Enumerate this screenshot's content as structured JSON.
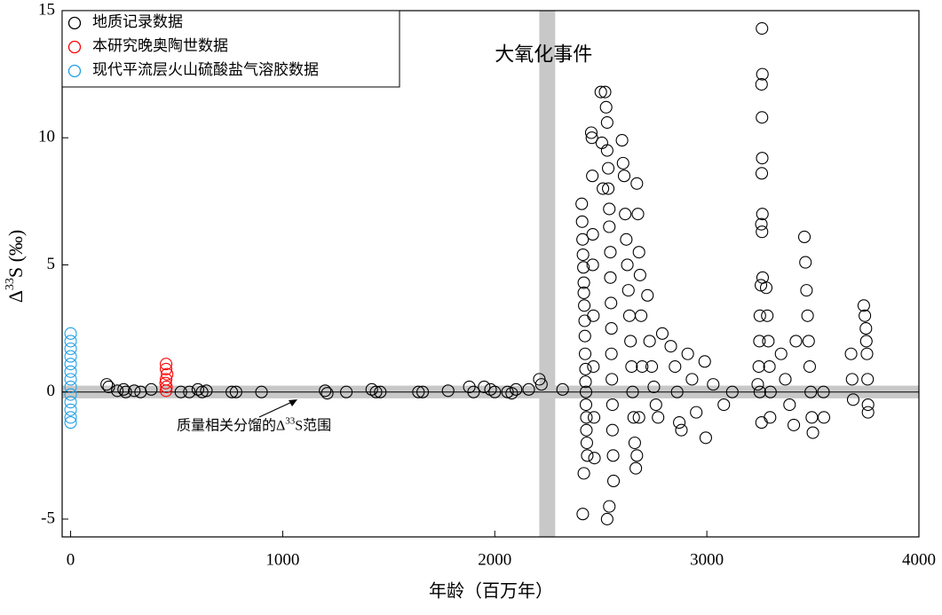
{
  "chart_data": {
    "type": "scatter",
    "xlabel": "年龄（百万年）",
    "ylabel": {
      "base": "Δ",
      "sup": "33",
      "rest": "S (‰)"
    },
    "xlim": [
      -40,
      4000
    ],
    "ylim": [
      -5.7,
      15
    ],
    "xticks": [
      0,
      1000,
      2000,
      3000,
      4000
    ],
    "yticks": [
      -5,
      0,
      5,
      10,
      15
    ],
    "legend": "upper left",
    "reference_line": 0,
    "mdf_band": [
      -0.25,
      0.25
    ],
    "goe_band": [
      2210,
      2285
    ],
    "annotations": [
      {
        "text": "大氧化事件",
        "x": 2000,
        "y": 13.2
      },
      {
        "parts": [
          "质量相关分馏的Δ",
          "33",
          "S范围"
        ],
        "x": 500,
        "y": -1.35
      }
    ],
    "series": [
      {
        "name": "地质记录数据",
        "color": "#000000",
        "x": [
          170,
          180,
          220,
          250,
          260,
          300,
          330,
          380,
          520,
          560,
          600,
          620,
          640,
          760,
          780,
          900,
          1200,
          1210,
          1300,
          1420,
          1440,
          1460,
          1640,
          1660,
          1780,
          1880,
          1900,
          1950,
          1980,
          2000,
          2060,
          2080,
          2100,
          2160,
          2210,
          2220,
          2320,
          2410,
          2412,
          2414,
          2416,
          2418,
          2420,
          2420,
          2422,
          2424,
          2425,
          2426,
          2428,
          2428,
          2430,
          2430,
          2432,
          2432,
          2434,
          2436,
          2420,
          2415,
          2455,
          2458,
          2460,
          2462,
          2462,
          2465,
          2465,
          2468,
          2470,
          2500,
          2505,
          2510,
          2520,
          2525,
          2530,
          2530,
          2535,
          2535,
          2540,
          2540,
          2545,
          2545,
          2548,
          2550,
          2550,
          2552,
          2555,
          2555,
          2558,
          2560,
          2540,
          2530,
          2600,
          2605,
          2610,
          2615,
          2620,
          2625,
          2630,
          2635,
          2640,
          2645,
          2650,
          2655,
          2660,
          2670,
          2675,
          2680,
          2685,
          2690,
          2695,
          2680,
          2670,
          2665,
          2720,
          2730,
          2740,
          2750,
          2760,
          2770,
          2790,
          2830,
          2850,
          2860,
          2870,
          2880,
          2910,
          2930,
          2950,
          2990,
          2995,
          3030,
          3080,
          3120,
          3240,
          3260,
          3262,
          3258,
          3260,
          3261,
          3259,
          3262,
          3257,
          3260,
          3263,
          3255,
          3250,
          3248,
          3245,
          3250,
          3258,
          3280,
          3285,
          3290,
          3295,
          3300,
          3298,
          3350,
          3370,
          3390,
          3410,
          3420,
          3460,
          3465,
          3470,
          3475,
          3480,
          3485,
          3490,
          3495,
          3500,
          3550,
          3552,
          3680,
          3685,
          3690,
          3740,
          3745,
          3750,
          3752,
          3755,
          3758,
          3760,
          3760
        ],
        "values": [
          0.3,
          0.2,
          0.05,
          0.1,
          0.0,
          0.05,
          0.0,
          0.1,
          0.0,
          0.0,
          0.1,
          0.0,
          0.05,
          0.0,
          0.0,
          0.0,
          0.05,
          -0.05,
          0.0,
          0.1,
          0.0,
          0.0,
          0.0,
          0.0,
          0.05,
          0.2,
          0.0,
          0.2,
          0.1,
          0.0,
          0.0,
          -0.05,
          0.1,
          0.1,
          0.5,
          0.3,
          0.1,
          7.4,
          6.7,
          6.0,
          5.4,
          4.9,
          4.3,
          3.9,
          3.4,
          2.8,
          2.2,
          1.5,
          0.9,
          0.4,
          0.0,
          -0.5,
          -1.0,
          -1.5,
          -2.0,
          -2.5,
          -3.2,
          -4.8,
          10.2,
          10.0,
          8.5,
          6.2,
          5.0,
          3.0,
          1.0,
          -1.0,
          -2.6,
          11.8,
          9.8,
          8.0,
          11.8,
          11.2,
          10.6,
          9.5,
          8.8,
          8.0,
          7.2,
          6.5,
          5.5,
          4.5,
          3.5,
          2.5,
          1.5,
          0.5,
          -0.5,
          -1.5,
          -2.5,
          -3.5,
          -4.5,
          -5.0,
          9.9,
          9.0,
          8.5,
          7.0,
          6.0,
          5.0,
          4.0,
          3.0,
          2.0,
          1.0,
          0.0,
          -1.0,
          -2.0,
          8.2,
          7.0,
          5.5,
          4.6,
          3.0,
          1.0,
          -1.0,
          -2.5,
          -3.0,
          3.8,
          2.0,
          1.0,
          0.2,
          -0.5,
          -1.0,
          2.3,
          1.8,
          1.0,
          0.0,
          -1.2,
          -1.5,
          1.5,
          0.5,
          -0.8,
          1.2,
          -1.8,
          0.3,
          -0.5,
          0.0,
          0.3,
          14.3,
          12.5,
          12.1,
          10.8,
          9.2,
          8.6,
          7.0,
          6.6,
          6.3,
          4.5,
          4.2,
          3.0,
          2.0,
          1.0,
          0.0,
          -1.2,
          4.1,
          3.0,
          2.0,
          1.0,
          0.0,
          -1.0,
          1.5,
          0.5,
          -0.5,
          -1.3,
          2.0,
          6.1,
          5.1,
          4.0,
          3.0,
          2.0,
          1.0,
          0.0,
          -1.0,
          -1.6,
          0.0,
          -1.0,
          1.5,
          0.5,
          -0.3,
          3.4,
          3.0,
          2.5,
          2.0,
          1.5,
          0.5,
          -0.5,
          -0.8
        ]
      },
      {
        "name": "本研究晚奥陶世数据",
        "color": "#ff0000",
        "x": [
          450,
          450,
          455,
          450,
          448,
          452,
          450
        ],
        "values": [
          1.1,
          0.9,
          0.7,
          0.5,
          0.35,
          0.2,
          0.05
        ]
      },
      {
        "name": "现代平流层火山硫酸盐气溶胶数据",
        "color": "#1ea0e6",
        "x": [
          0,
          0,
          0,
          0,
          0,
          0,
          0,
          0,
          0,
          0,
          0,
          0,
          0
        ],
        "values": [
          2.3,
          2.0,
          1.7,
          1.4,
          1.1,
          0.8,
          0.5,
          0.2,
          -0.1,
          -0.4,
          -0.7,
          -1.0,
          -1.2
        ]
      }
    ]
  }
}
